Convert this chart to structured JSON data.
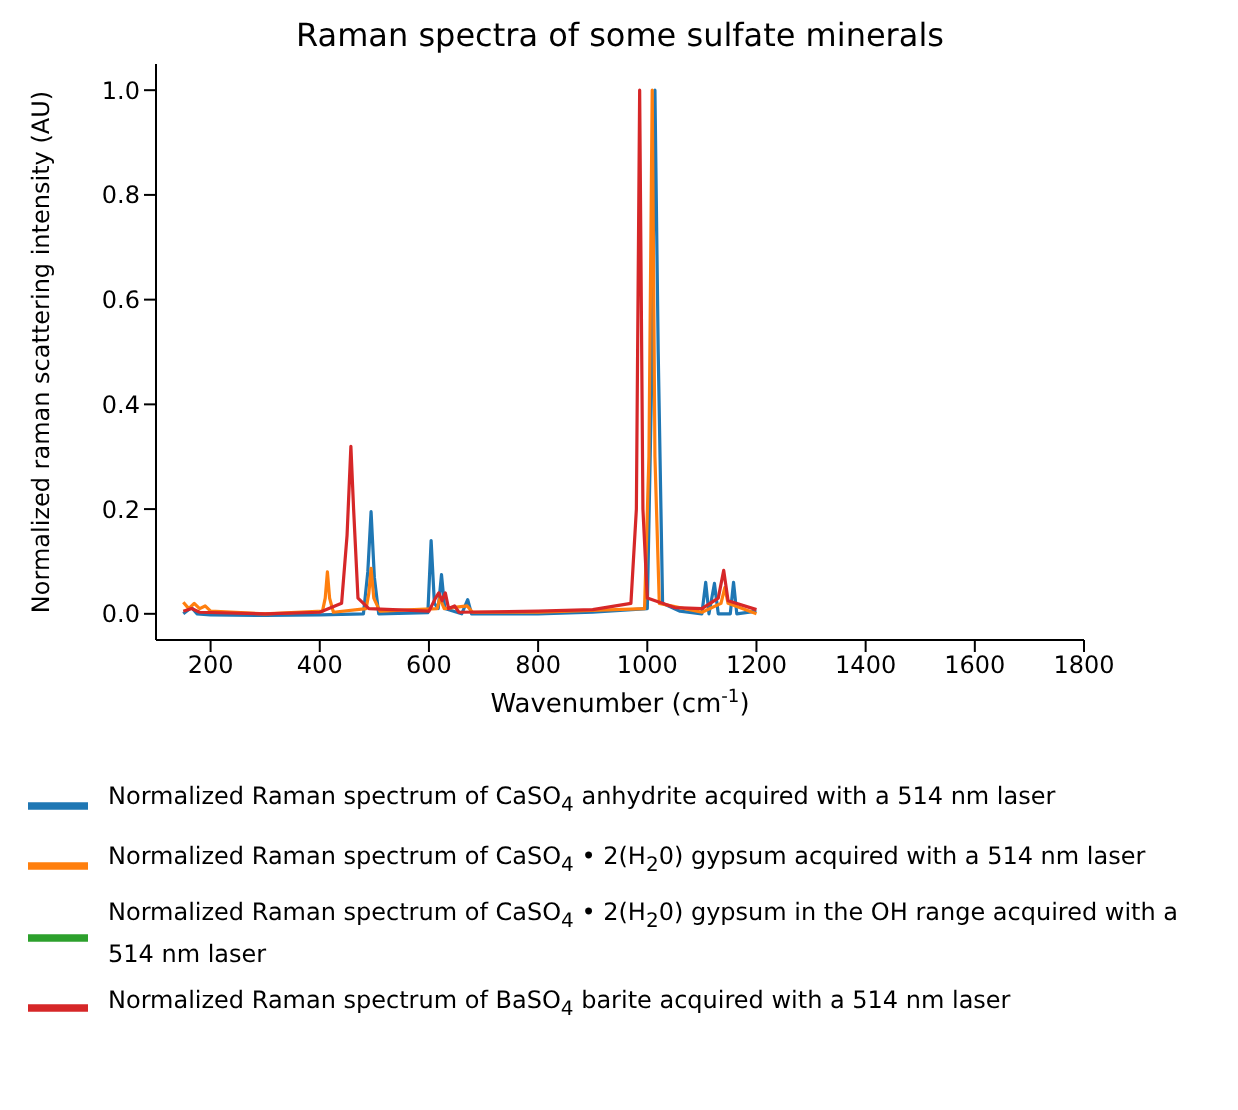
{
  "chart_data": {
    "type": "line",
    "title": "Raman spectra of some sulfate minerals",
    "xlabel": "Wavenumber (cm$^{-1}$)",
    "ylabel": "Normalized raman scattering intensity (AU)",
    "xlim": [
      100,
      1800
    ],
    "xticks": [
      200,
      400,
      600,
      800,
      1000,
      1200,
      1400,
      1600,
      1800
    ],
    "ylim": [
      -0.05,
      1.05
    ],
    "yticks": [
      {
        "value": 0,
        "label": "0.0"
      },
      {
        "value": 0.2,
        "label": "0.2"
      },
      {
        "value": 0.4,
        "label": "0.4"
      },
      {
        "value": 0.6,
        "label": "0.6"
      },
      {
        "value": 0.8,
        "label": "0.8"
      },
      {
        "value": 1,
        "label": "1.0"
      }
    ],
    "grid": false,
    "legend": "bottom",
    "marker": "none",
    "line_style": "solid",
    "series": [
      {
        "name": "Normalized Raman spectrum of CaSO$_{4}$ anhydrite acquired with a 514 nm laser",
        "color": "#1f77b4",
        "x": [
          150,
          165,
          175,
          200,
          300,
          400,
          480,
          488,
          494,
          500,
          508,
          598,
          604,
          610,
          617,
          623,
          629,
          660,
          671,
          678,
          800,
          900,
          1000,
          1009,
          1014,
          1020,
          1028,
          1060,
          1100,
          1107,
          1113,
          1123,
          1130,
          1152,
          1158,
          1164,
          1200
        ],
        "values": [
          0,
          0.012,
          0,
          -0.002,
          -0.003,
          -0.002,
          0,
          0.08,
          0.195,
          0.07,
          0,
          0.002,
          0.14,
          0.02,
          0.01,
          0.075,
          0.01,
          0,
          0.027,
          0,
          0,
          0.003,
          0.01,
          0.5,
          1.0,
          0.5,
          0.02,
          0.005,
          0,
          0.06,
          0,
          0.058,
          0,
          0,
          0.06,
          0,
          0.005
        ]
      },
      {
        "name": "Normalized Raman spectrum of CaSO$_{4}$ • 2(H$_{2}$0) gypsum acquired with a 514 nm laser",
        "color": "#ff7f0e",
        "x": [
          150,
          160,
          170,
          180,
          190,
          200,
          300,
          405,
          410,
          414,
          418,
          425,
          485,
          490,
          494,
          499,
          510,
          615,
          620,
          628,
          670,
          680,
          800,
          995,
          1003,
          1009,
          1014,
          1022,
          1100,
          1135,
          1142,
          1148,
          1200
        ],
        "values": [
          0.022,
          0.01,
          0.02,
          0.01,
          0.015,
          0.005,
          0,
          0.005,
          0.03,
          0.08,
          0.03,
          0.003,
          0.01,
          0.04,
          0.087,
          0.03,
          0.005,
          0.01,
          0.03,
          0.01,
          0.015,
          0.003,
          0.003,
          0.01,
          0.3,
          1.0,
          0.3,
          0.02,
          0.003,
          0.02,
          0.05,
          0.02,
          0
        ]
      },
      {
        "name": "Normalized Raman spectrum of CaSO$_{4}$ • 2(H$_{2}$0) gypsum in the OH range acquired with a 514 nm laser",
        "color": "#2ca02c"
      },
      {
        "name": "Normalized Raman spectrum of BaSO$_{4}$ barite acquired with a 514 nm laser",
        "color": "#d62728",
        "x": [
          150,
          165,
          180,
          300,
          400,
          440,
          450,
          457,
          462,
          470,
          490,
          600,
          612,
          618,
          624,
          630,
          636,
          647,
          655,
          800,
          900,
          970,
          980,
          986,
          992,
          1000,
          1050,
          1100,
          1130,
          1140,
          1148,
          1200
        ],
        "values": [
          0.005,
          0.01,
          0.003,
          0,
          0.003,
          0.02,
          0.15,
          0.32,
          0.2,
          0.03,
          0.01,
          0.005,
          0.03,
          0.04,
          0.025,
          0.04,
          0.01,
          0.015,
          0.003,
          0.005,
          0.008,
          0.02,
          0.2,
          1.0,
          0.2,
          0.03,
          0.012,
          0.01,
          0.03,
          0.083,
          0.025,
          0.008
        ]
      }
    ]
  }
}
